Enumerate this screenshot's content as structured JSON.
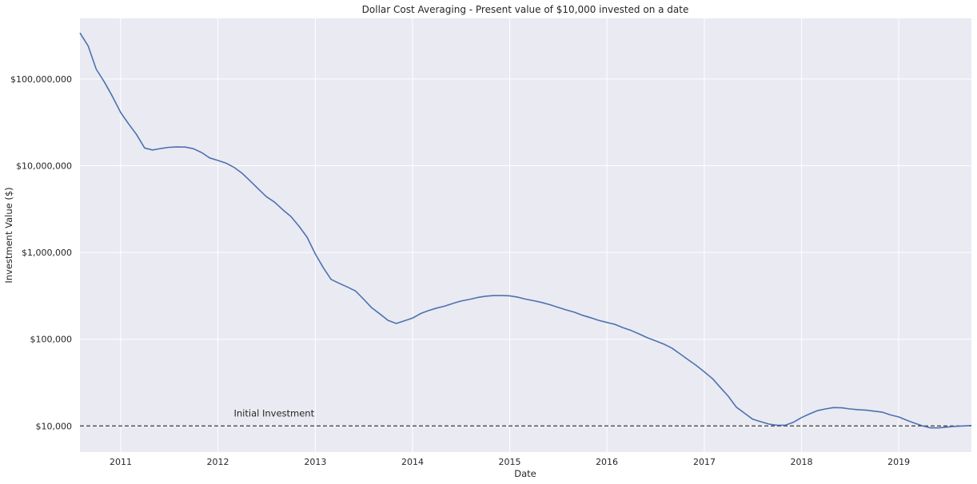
{
  "chart_data": {
    "type": "line",
    "title": "Dollar Cost Averaging - Present value of $10,000 invested on a date",
    "xlabel": "Date",
    "ylabel": "Investment Value ($)",
    "y_scale": "log",
    "xlim": [
      "2010-08-01",
      "2019-10-01"
    ],
    "ylim": [
      5000,
      500000000
    ],
    "x_ticks": [
      {
        "value": "2011-01-01",
        "label": "2011"
      },
      {
        "value": "2012-01-01",
        "label": "2012"
      },
      {
        "value": "2013-01-01",
        "label": "2013"
      },
      {
        "value": "2014-01-01",
        "label": "2014"
      },
      {
        "value": "2015-01-01",
        "label": "2015"
      },
      {
        "value": "2016-01-01",
        "label": "2016"
      },
      {
        "value": "2017-01-01",
        "label": "2017"
      },
      {
        "value": "2018-01-01",
        "label": "2018"
      },
      {
        "value": "2019-01-01",
        "label": "2019"
      }
    ],
    "y_ticks": [
      {
        "value": 10000,
        "label": "$10,000"
      },
      {
        "value": 100000,
        "label": "$100,000"
      },
      {
        "value": 1000000,
        "label": "$1,000,000"
      },
      {
        "value": 10000000,
        "label": "$10,000,000"
      },
      {
        "value": 100000000,
        "label": "$100,000,000"
      }
    ],
    "grid": true,
    "colors": {
      "background": "#eaeaf2",
      "line": "#4c72b0",
      "reference": "#4a4a4a"
    },
    "reference_line": {
      "value": 10000,
      "style": "dashed",
      "label": "Initial Investment",
      "label_x": "2012-03-01"
    },
    "series": [
      {
        "x": [
          "2010-08-01",
          "2010-09-01",
          "2010-10-01",
          "2010-11-01",
          "2010-12-01",
          "2011-01-01",
          "2011-02-01",
          "2011-03-01",
          "2011-04-01",
          "2011-05-01",
          "2011-06-01",
          "2011-07-01",
          "2011-08-01",
          "2011-09-01",
          "2011-10-01",
          "2011-11-01",
          "2011-12-01",
          "2012-01-01",
          "2012-02-01",
          "2012-03-01",
          "2012-04-01",
          "2012-05-01",
          "2012-06-01",
          "2012-07-01",
          "2012-08-01",
          "2012-09-01",
          "2012-10-01",
          "2012-11-01",
          "2012-12-01",
          "2013-01-01",
          "2013-02-01",
          "2013-03-01",
          "2013-04-01",
          "2013-05-01",
          "2013-06-01",
          "2013-07-01",
          "2013-08-01",
          "2013-09-01",
          "2013-10-01",
          "2013-11-01",
          "2013-12-01",
          "2014-01-01",
          "2014-02-01",
          "2014-03-01",
          "2014-04-01",
          "2014-05-01",
          "2014-06-01",
          "2014-07-01",
          "2014-08-01",
          "2014-09-01",
          "2014-10-01",
          "2014-11-01",
          "2014-12-01",
          "2015-01-01",
          "2015-02-01",
          "2015-03-01",
          "2015-04-01",
          "2015-05-01",
          "2015-06-01",
          "2015-07-01",
          "2015-08-01",
          "2015-09-01",
          "2015-10-01",
          "2015-11-01",
          "2015-12-01",
          "2016-01-01",
          "2016-02-01",
          "2016-03-01",
          "2016-04-01",
          "2016-05-01",
          "2016-06-01",
          "2016-07-01",
          "2016-08-01",
          "2016-09-01",
          "2016-10-01",
          "2016-11-01",
          "2016-12-01",
          "2017-01-01",
          "2017-02-01",
          "2017-03-01",
          "2017-04-01",
          "2017-05-01",
          "2017-06-01",
          "2017-07-01",
          "2017-08-01",
          "2017-09-01",
          "2017-10-01",
          "2017-11-01",
          "2017-12-01",
          "2018-01-01",
          "2018-02-01",
          "2018-03-01",
          "2018-04-01",
          "2018-05-01",
          "2018-06-01",
          "2018-07-01",
          "2018-08-01",
          "2018-09-01",
          "2018-10-01",
          "2018-11-01",
          "2018-12-01",
          "2019-01-01",
          "2019-02-01",
          "2019-03-01",
          "2019-04-01",
          "2019-05-01",
          "2019-06-01",
          "2019-07-01",
          "2019-08-01",
          "2019-09-01",
          "2019-10-01"
        ],
        "y": [
          340000000,
          240000000,
          130000000,
          92000000,
          63000000,
          41000000,
          30000000,
          23000000,
          16000000,
          15200000,
          15800000,
          16300000,
          16500000,
          16400000,
          15700000,
          14200000,
          12300000,
          11500000,
          10700000,
          9600000,
          8200000,
          6700000,
          5400000,
          4400000,
          3800000,
          3100000,
          2600000,
          2000000,
          1500000,
          960000,
          660000,
          490000,
          440000,
          400000,
          360000,
          290000,
          230000,
          195000,
          165000,
          152000,
          163000,
          175000,
          198000,
          213000,
          228000,
          240000,
          258000,
          275000,
          287000,
          302000,
          313000,
          318000,
          318000,
          316000,
          305000,
          290000,
          278000,
          265000,
          250000,
          233000,
          218000,
          205000,
          189000,
          177000,
          165000,
          156000,
          148000,
          136000,
          126000,
          115000,
          104000,
          96000,
          88000,
          79000,
          68000,
          58000,
          50000,
          42000,
          35000,
          28000,
          22000,
          16500,
          14000,
          12000,
          11200,
          10500,
          10200,
          10200,
          11000,
          12500,
          13800,
          15000,
          15700,
          16300,
          16200,
          15700,
          15400,
          15200,
          14800,
          14400,
          13400,
          12700,
          11600,
          10800,
          10000,
          9500,
          9500,
          9700,
          9900,
          10000,
          10100
        ]
      }
    ]
  }
}
